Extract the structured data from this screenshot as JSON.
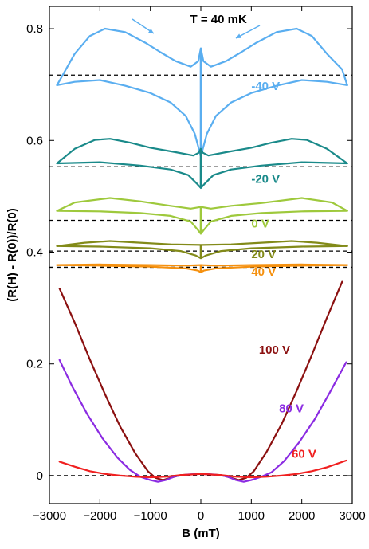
{
  "chart_data": {
    "type": "line",
    "title": "",
    "xlabel": "B (mT)",
    "ylabel": "(R(H) - R(0))/R(0)",
    "xlim": [
      -3000,
      3000
    ],
    "ylim": [
      -0.05,
      0.84
    ],
    "xticks": [
      -3000,
      -2000,
      -1000,
      0,
      1000,
      2000,
      3000
    ],
    "xtick_labels": [
      "−3000",
      "−2000",
      "−1000",
      "0",
      "1000",
      "2000",
      "3000"
    ],
    "yticks": [
      0,
      0.2,
      0.4,
      0.6,
      0.8
    ],
    "ytick_labels": [
      "0",
      "0.2",
      "0.4",
      "0.6",
      "0.8"
    ],
    "grid": false,
    "legend": "none",
    "annotations": [
      {
        "text": "T = 40 mK",
        "x": 350,
        "y": 0.81,
        "color": "#000000"
      }
    ],
    "series": [
      {
        "name": "-40 V",
        "color": "#5aaef0",
        "label_at": [
          1000,
          0.69
        ],
        "baseline": 0.717,
        "upper": [
          [
            -2850,
            0.699
          ],
          [
            -2500,
            0.755
          ],
          [
            -2200,
            0.787
          ],
          [
            -1900,
            0.8
          ],
          [
            -1500,
            0.794
          ],
          [
            -1100,
            0.775
          ],
          [
            -800,
            0.758
          ],
          [
            -500,
            0.742
          ],
          [
            -200,
            0.732
          ],
          [
            -50,
            0.742
          ],
          [
            0,
            0.765
          ],
          [
            50,
            0.742
          ],
          [
            200,
            0.732
          ],
          [
            500,
            0.742
          ],
          [
            800,
            0.758
          ],
          [
            1100,
            0.775
          ],
          [
            1500,
            0.794
          ],
          [
            1900,
            0.8
          ],
          [
            2200,
            0.787
          ],
          [
            2500,
            0.755
          ],
          [
            2800,
            0.727
          ],
          [
            2900,
            0.699
          ]
        ],
        "lower": [
          [
            -2850,
            0.699
          ],
          [
            -2500,
            0.705
          ],
          [
            -2000,
            0.708
          ],
          [
            -1500,
            0.698
          ],
          [
            -1000,
            0.685
          ],
          [
            -600,
            0.668
          ],
          [
            -300,
            0.644
          ],
          [
            -120,
            0.612
          ],
          [
            -40,
            0.585
          ],
          [
            0,
            0.572
          ],
          [
            40,
            0.585
          ],
          [
            120,
            0.612
          ],
          [
            300,
            0.644
          ],
          [
            600,
            0.668
          ],
          [
            1000,
            0.685
          ],
          [
            1500,
            0.698
          ],
          [
            2000,
            0.708
          ],
          [
            2500,
            0.705
          ],
          [
            2900,
            0.699
          ]
        ]
      },
      {
        "name": "-20 V",
        "color": "#1a8a8a",
        "label_at": [
          1000,
          0.524
        ],
        "baseline": 0.553,
        "upper": [
          [
            -2850,
            0.559
          ],
          [
            -2500,
            0.585
          ],
          [
            -2100,
            0.601
          ],
          [
            -1800,
            0.603
          ],
          [
            -1400,
            0.596
          ],
          [
            -1000,
            0.587
          ],
          [
            -500,
            0.579
          ],
          [
            -150,
            0.573
          ],
          [
            -40,
            0.578
          ],
          [
            0,
            0.585
          ],
          [
            40,
            0.578
          ],
          [
            150,
            0.573
          ],
          [
            500,
            0.579
          ],
          [
            1000,
            0.587
          ],
          [
            1400,
            0.596
          ],
          [
            1800,
            0.603
          ],
          [
            2100,
            0.601
          ],
          [
            2500,
            0.585
          ],
          [
            2900,
            0.559
          ]
        ],
        "lower": [
          [
            -2850,
            0.559
          ],
          [
            -2000,
            0.561
          ],
          [
            -1200,
            0.555
          ],
          [
            -600,
            0.548
          ],
          [
            -250,
            0.538
          ],
          [
            -80,
            0.523
          ],
          [
            0,
            0.515
          ],
          [
            80,
            0.523
          ],
          [
            250,
            0.538
          ],
          [
            600,
            0.548
          ],
          [
            1200,
            0.555
          ],
          [
            2000,
            0.561
          ],
          [
            2900,
            0.559
          ]
        ]
      },
      {
        "name": "0 V",
        "color": "#9ec93c",
        "label_at": [
          1000,
          0.444
        ],
        "baseline": 0.457,
        "upper": [
          [
            -2850,
            0.474
          ],
          [
            -2500,
            0.489
          ],
          [
            -1800,
            0.497
          ],
          [
            -1200,
            0.491
          ],
          [
            -600,
            0.483
          ],
          [
            -200,
            0.478
          ],
          [
            0,
            0.481
          ],
          [
            200,
            0.478
          ],
          [
            600,
            0.483
          ],
          [
            1200,
            0.488
          ],
          [
            2000,
            0.497
          ],
          [
            2600,
            0.489
          ],
          [
            2900,
            0.474
          ]
        ],
        "lower": [
          [
            -2850,
            0.474
          ],
          [
            -2000,
            0.473
          ],
          [
            -1200,
            0.47
          ],
          [
            -600,
            0.465
          ],
          [
            -200,
            0.455
          ],
          [
            -60,
            0.44
          ],
          [
            0,
            0.433
          ],
          [
            60,
            0.44
          ],
          [
            200,
            0.455
          ],
          [
            600,
            0.465
          ],
          [
            1200,
            0.47
          ],
          [
            2000,
            0.473
          ],
          [
            2900,
            0.474
          ]
        ]
      },
      {
        "name": "20 V",
        "color": "#828a18",
        "label_at": [
          1000,
          0.389
        ],
        "baseline": 0.402,
        "upper": [
          [
            -2850,
            0.411
          ],
          [
            -2300,
            0.417
          ],
          [
            -1800,
            0.42
          ],
          [
            -1200,
            0.417
          ],
          [
            -600,
            0.414
          ],
          [
            0,
            0.413
          ],
          [
            600,
            0.414
          ],
          [
            1200,
            0.417
          ],
          [
            1800,
            0.42
          ],
          [
            2300,
            0.417
          ],
          [
            2900,
            0.411
          ]
        ],
        "lower": [
          [
            -2850,
            0.411
          ],
          [
            -2000,
            0.41
          ],
          [
            -1000,
            0.407
          ],
          [
            -400,
            0.402
          ],
          [
            -100,
            0.394
          ],
          [
            0,
            0.389
          ],
          [
            100,
            0.394
          ],
          [
            400,
            0.402
          ],
          [
            1000,
            0.407
          ],
          [
            2000,
            0.41
          ],
          [
            2900,
            0.411
          ]
        ]
      },
      {
        "name": "40 V",
        "color": "#f5900e",
        "label_at": [
          1000,
          0.358
        ],
        "baseline": 0.373,
        "upper": [
          [
            -2850,
            0.377
          ],
          [
            -2000,
            0.378
          ],
          [
            -1000,
            0.377
          ],
          [
            -300,
            0.376
          ],
          [
            0,
            0.377
          ],
          [
            300,
            0.376
          ],
          [
            1000,
            0.377
          ],
          [
            2000,
            0.378
          ],
          [
            2900,
            0.377
          ]
        ],
        "lower": [
          [
            -2850,
            0.377
          ],
          [
            -2000,
            0.376
          ],
          [
            -1000,
            0.374
          ],
          [
            -300,
            0.371
          ],
          [
            -60,
            0.367
          ],
          [
            0,
            0.364
          ],
          [
            60,
            0.367
          ],
          [
            300,
            0.371
          ],
          [
            1000,
            0.374
          ],
          [
            2000,
            0.376
          ],
          [
            2900,
            0.377
          ]
        ]
      },
      {
        "name": "100 V",
        "color": "#8b1010",
        "label_at": [
          1150,
          0.218
        ],
        "baseline": 0,
        "upper": [
          [
            -2800,
            0.335
          ],
          [
            -2500,
            0.274
          ],
          [
            -2200,
            0.208
          ],
          [
            -1900,
            0.146
          ],
          [
            -1600,
            0.088
          ],
          [
            -1300,
            0.04
          ],
          [
            -1050,
            0.008
          ],
          [
            -900,
            -0.004
          ],
          [
            -750,
            -0.008
          ],
          [
            -600,
            -0.004
          ],
          [
            -400,
            0.001
          ],
          [
            -200,
            0.002
          ],
          [
            0,
            0.003
          ],
          [
            200,
            0.002
          ],
          [
            400,
            0.001
          ],
          [
            600,
            -0.004
          ],
          [
            750,
            -0.008
          ],
          [
            900,
            -0.004
          ],
          [
            1050,
            0.008
          ],
          [
            1300,
            0.042
          ],
          [
            1600,
            0.092
          ],
          [
            1900,
            0.152
          ],
          [
            2200,
            0.216
          ],
          [
            2500,
            0.283
          ],
          [
            2800,
            0.347
          ]
        ]
      },
      {
        "name": "80 V",
        "color": "#8b2be2",
        "label_at": [
          1550,
          0.113
        ],
        "baseline": 0,
        "upper": [
          [
            -2800,
            0.207
          ],
          [
            -2550,
            0.16
          ],
          [
            -2250,
            0.11
          ],
          [
            -1950,
            0.067
          ],
          [
            -1650,
            0.032
          ],
          [
            -1400,
            0.01
          ],
          [
            -1200,
            -0.002
          ],
          [
            -1000,
            -0.008
          ],
          [
            -850,
            -0.011
          ],
          [
            -700,
            -0.008
          ],
          [
            -500,
            -0.001
          ],
          [
            -250,
            0.002
          ],
          [
            0,
            0.003
          ],
          [
            250,
            0.002
          ],
          [
            500,
            -0.001
          ],
          [
            700,
            -0.008
          ],
          [
            850,
            -0.011
          ],
          [
            1000,
            -0.008
          ],
          [
            1200,
            -0.002
          ],
          [
            1400,
            0.006
          ],
          [
            1650,
            0.026
          ],
          [
            1950,
            0.06
          ],
          [
            2250,
            0.1
          ],
          [
            2550,
            0.148
          ],
          [
            2880,
            0.203
          ]
        ]
      },
      {
        "name": "60 V",
        "color": "#f02020",
        "label_at": [
          1800,
          0.032
        ],
        "baseline": 0,
        "upper": [
          [
            -2800,
            0.025
          ],
          [
            -2500,
            0.016
          ],
          [
            -2200,
            0.008
          ],
          [
            -1900,
            0.003
          ],
          [
            -1600,
            0.0
          ],
          [
            -1300,
            -0.002
          ],
          [
            -1000,
            -0.003
          ],
          [
            -700,
            -0.002
          ],
          [
            -400,
            0.001
          ],
          [
            0,
            0.003
          ],
          [
            400,
            0.001
          ],
          [
            700,
            -0.002
          ],
          [
            1000,
            -0.003
          ],
          [
            1300,
            -0.002
          ],
          [
            1600,
            0.0
          ],
          [
            1900,
            0.003
          ],
          [
            2200,
            0.008
          ],
          [
            2500,
            0.015
          ],
          [
            2880,
            0.027
          ]
        ]
      }
    ]
  }
}
